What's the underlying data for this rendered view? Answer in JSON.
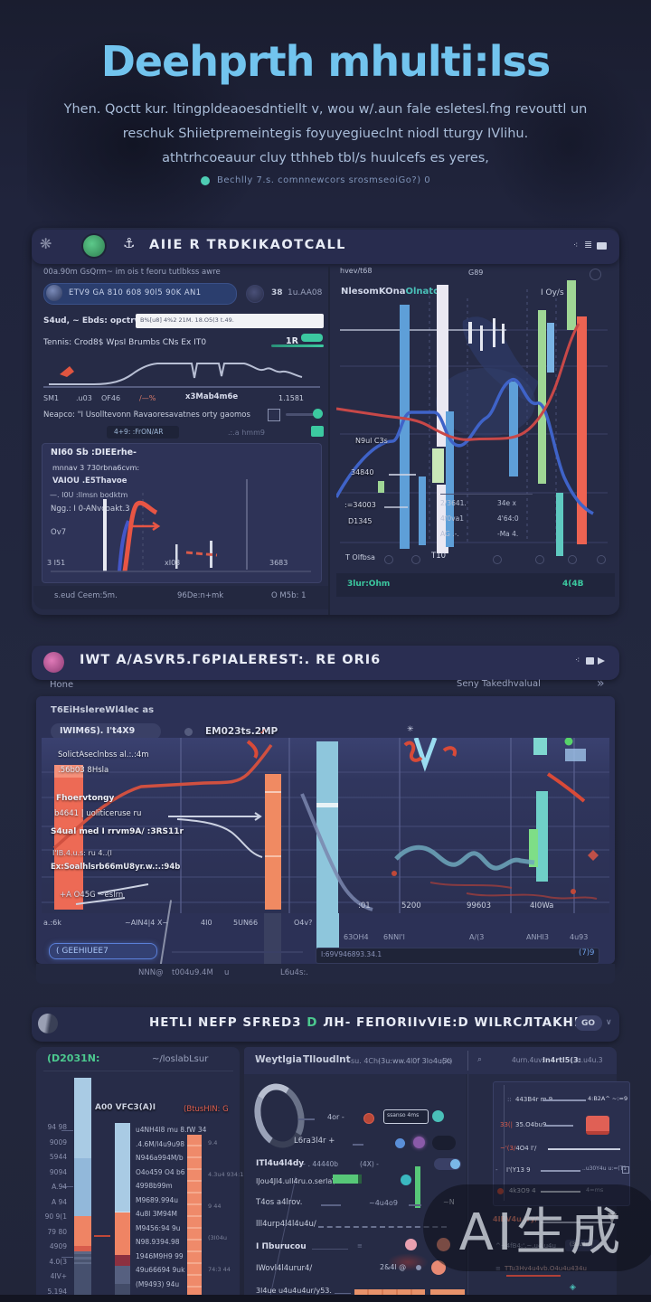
{
  "hero": {
    "title": "Deehprth mhulti:lss",
    "line1": "Yhen. Qoctt kur. ltingpldeaoesdntiellt v, wou w/.aun fale esletesl.fng revouttl un",
    "line2": "reschuk Shiietpremeintegis foyuyegiueclnt niodl tturgy IVlihu.",
    "line3": "athtrhcoeauur cluy tthheb tbl/s  huulcefs es yeres,",
    "caption": "Bechlly 7.s.  comnnewcors srosmseoiGo?) 0"
  },
  "colors": {
    "accent_blue": "#6ec6f0",
    "accent_teal": "#3cc9a0",
    "bar_blue": "#5e9fd8",
    "bar_white": "#eae8f2",
    "bar_green": "#9fd695",
    "bar_red": "#ed6352",
    "bar_orange": "#f0875f",
    "bar_cyan": "#8ec6dc",
    "pink": "#c9559a"
  },
  "panel1": {
    "title": "AIIE R  TRDKIKAOTCALL",
    "left": {
      "meta": "00a.90m   GsQrm~ im ois t feoru tutlbkss awre",
      "chip_text": "ETV9 GA 810 608 90l5 90K AN1",
      "chip_num": "38",
      "chip_val": "1u.AA08",
      "search_label": "S4ud, ~ Ebds: opctrwvwvy",
      "search_value": "B%[u8] 4%2 21M. 18.O5(3 t.49.",
      "row1_label": "Tennis: Crod8$ WpsI Brumbs CNs Ex IT0",
      "row1_value": "1R",
      "ticks": [
        "SM1",
        ".u03",
        "OF46",
        "/—%",
        "x3Mab4m6e",
        "1.1581"
      ],
      "row2_label": "Neapco: \"I Usolltevonn Ravaoresavatnes orty gaomos",
      "row3_chip": "4+9: :FrON/AR",
      "row3_mid": ".:.a hmm9",
      "card": {
        "title": "NI60 Sb :DIEErhe-",
        "legend": [
          "mnnav   3 730rbna6cvm:",
          "VAIOU .E5Thavoe",
          "—. I0U :llmsn bodktm",
          "Ngg.: I 0-ANvcoakt.3"
        ],
        "ylabel": "Ov7",
        "xticks": [
          "3 I51",
          "xI03",
          "3683"
        ]
      },
      "footer": [
        "s.eud Ceem:5m.",
        "96De:n+mk",
        "O M5b: 1"
      ]
    },
    "right": {
      "top_small": "hvev/t68",
      "top_mid": "G89",
      "legend_a": "NlesomKOna",
      "legend_b": "Olnato",
      "top_right": "I Oy/s",
      "inset": [
        "N9ul C3s",
        "34840",
        ":=34003",
        "D1345"
      ],
      "table_c1": [
        "2/3641.",
        "4f0va1",
        "AG .-."
      ],
      "table_c2": [
        "34e x",
        "4'64:0",
        "-Ma 4."
      ],
      "axis_left": "T Olfbsa",
      "axis_mid": "T10",
      "footer_left": "3lur:Ohm",
      "footer_right": "4(4B"
    }
  },
  "panel2": {
    "title": "IWT A/ASVR5.Г6PIALEREST:.    RE ORI6",
    "crumb_left": "Hone",
    "crumb_right": "Seny Takedhvalual",
    "chevrons": "»",
    "card_title": "T6EiHslereWl4lec  as",
    "pill": "IWIM6S). I't4X9",
    "pill2": "EM023ts.2MP",
    "labels": [
      "SolictAseclnbss al.:.:4m",
      ".56b03 8Hsla",
      "Fhoervtongy",
      "b4641 | uoliticeruse ru",
      "S4ual med I rrvm9A/  :3RS11r",
      "I'lB.4.u.s: ru 4..(l",
      "Ex:Soalhlsrb66mU8yr.w.:.:94b",
      "+A O45G ~eslrn"
    ],
    "xticks_top": [
      ":01",
      "5200",
      "99603",
      "4I0Wa"
    ],
    "left_ticks": [
      "a.:6k",
      "~AIN4|4 X~",
      "4I0",
      "5UN66",
      "O4v?"
    ],
    "xticks_bottom": [
      "63OH4",
      "6NNI'l",
      "A/(3",
      "ANHI3",
      "4u93"
    ],
    "input_chip": "( GEEHIUEE7",
    "input_value": "I:69V946893.34.1",
    "input_right": "(7)9",
    "footer": [
      "NNN@",
      "t004u9.4M",
      "u",
      "L6u4s:."
    ]
  },
  "panel3": {
    "title_a": "HETLI NEFP SFRED3",
    "title_d": "D",
    "title_b": "ЛH- FEПORIIvVIE:D WILRCЛTAKHEI",
    "badge": "GO",
    "chev": "∨",
    "left": {
      "header_green": "(D2031N:",
      "header_right": "~/loslabLsur",
      "bar2_label": "A00 VFC3(A)I",
      "bar3_label": "(BtusHIN: G",
      "axis": [
        "94 98",
        "9009",
        "5944",
        "9094",
        "A.94",
        "A 94",
        "90 9(1",
        "79 80",
        "4909",
        "4.0(3",
        "4IV+",
        "5.194"
      ],
      "list": [
        "u4NH4l8 mu 8.fW 34",
        ".4.6M/l4u9u98",
        "N946a994M/b",
        "O4o459 O4 b6",
        "4998b99m",
        "M9689.994u",
        "4u8l 3M94M",
        "M9456:94 9u",
        "N98.9394.98",
        "1946M9H9 99",
        "49u66694 9uk",
        "(M9493) 94u",
        "M96a694 94u"
      ],
      "rticks": [
        "9.4",
        "4.3u4 934:1",
        "9 44",
        "(3I04u",
        "74:3 44"
      ]
    },
    "mid": {
      "h1": "Weytlgia",
      "h2": "Tlloudlnt",
      "h3": "su. 4Ch-",
      "h4": "(3u:ww.4l0f  3lo4u5o",
      "h5": ":(X)",
      "r1_text": "4or -",
      "r1_chip": "ssanso 4ms",
      "r2_label": "L6ra3l4r +",
      "r3_label": "ITl4u4l4dy",
      "r3_val": "~ .  44440b",
      "r3_val2": "(4X)  -",
      "r4_label": "IJou4Jl4.ull4ru.o.serla\\",
      "r5_label": "T4os a4lrov.",
      "r5_val": "~4u4o9",
      "r5_right": "~N",
      "r6_label": "lll4urp4l4l4u4u/",
      "r7_label": "I Пburucou",
      "r8_label": "IWovl4l4urur4/",
      "r8_val": "2&4l @",
      "r9_label": "3l4ue u4u4u4ur/y53."
    },
    "right": {
      "search_a": "4urn.4uv:",
      "search_b": "In4rtl5(3:",
      "search_c": "u.u4u.3",
      "s1_pre": "::",
      "s1_label": "443B4r m 9",
      "s1_suffix": "4:B2A^  ~:=9",
      "s2_pre": "33(|",
      "s2_label": "35.O4bu9",
      "s3_label_red": "~'(3/",
      "s3_label": "4O4 I'/",
      "s4_pre": "-",
      "s4_label": "I'(Y13 9",
      "s4_suffix": "..u30Y4u  u:=(T1",
      "s5_label": "4k3O9 4",
      "s5_suffix": "4=ms",
      "b1_label": "4IBV4u.lry/",
      "b2_label": "^~4fB4:'.~.u4.u4u",
      "b2_chip": "(3uu4m)",
      "b3_label": "TTu3Hv4u4vb.O4u4u434u",
      "b4_glyph": "◈"
    }
  },
  "watermark": "AI生成"
}
